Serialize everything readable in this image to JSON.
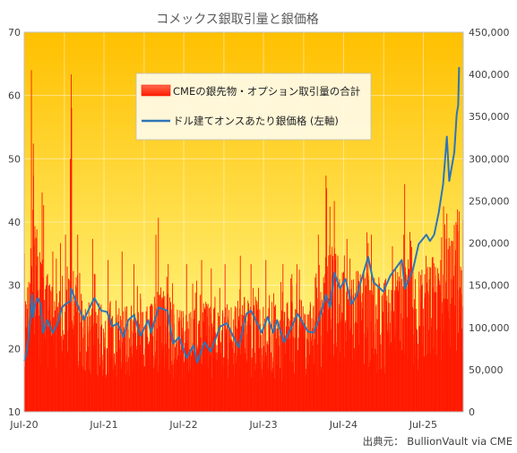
{
  "chart_data": {
    "type": "bar+line",
    "title": "コメックス銀取引量と銀価格",
    "source": "出典元： BullionVault via CME",
    "legend": {
      "placement": "top-center",
      "entries": [
        "CMEの銀先物・オプション取引量の合計",
        "ドル建てオンスあたり銀価格 (左軸)"
      ]
    },
    "x_axis": {
      "start": "2020-07",
      "end": "2025-12",
      "tick_labels": [
        "Jul-20",
        "Jul-21",
        "Jul-22",
        "Jul-23",
        "Jul-24",
        "Jul-25"
      ]
    },
    "left_axis": {
      "ylim": [
        10,
        70
      ],
      "ticks": [
        10,
        20,
        30,
        40,
        50,
        60,
        70
      ]
    },
    "right_axis": {
      "ylim": [
        0,
        450000
      ],
      "tick_labels": [
        "0",
        "50,000",
        "100,000",
        "150,000",
        "200,000",
        "250,000",
        "300,000",
        "350,000",
        "400,000",
        "450,000"
      ]
    },
    "grid": true,
    "colors": {
      "bars": "#ff1a00",
      "line": "#2e75b6",
      "bg_top": "#ffc000",
      "bg_bottom": "#ffff99"
    },
    "series": [
      {
        "name": "CMEの銀先物・オプション取引量の合計",
        "axis": "right",
        "kind": "bar",
        "baseline_points": [
          [
            "2020-07",
            95000
          ],
          [
            "2020-08",
            150000
          ],
          [
            "2020-09",
            120000
          ],
          [
            "2020-10",
            100000
          ],
          [
            "2020-11",
            95000
          ],
          [
            "2020-12",
            90000
          ],
          [
            "2021-01",
            95000
          ],
          [
            "2021-02",
            120000
          ],
          [
            "2021-03",
            90000
          ],
          [
            "2021-04",
            80000
          ],
          [
            "2021-05",
            88000
          ],
          [
            "2021-06",
            82000
          ],
          [
            "2021-07",
            80000
          ],
          [
            "2021-08",
            88000
          ],
          [
            "2021-09",
            85000
          ],
          [
            "2021-10",
            80000
          ],
          [
            "2021-11",
            85000
          ],
          [
            "2021-12",
            80000
          ],
          [
            "2022-01",
            78000
          ],
          [
            "2022-02",
            85000
          ],
          [
            "2022-03",
            95000
          ],
          [
            "2022-04",
            85000
          ],
          [
            "2022-05",
            80000
          ],
          [
            "2022-06",
            78000
          ],
          [
            "2022-07",
            75000
          ],
          [
            "2022-08",
            78000
          ],
          [
            "2022-09",
            80000
          ],
          [
            "2022-10",
            82000
          ],
          [
            "2022-11",
            80000
          ],
          [
            "2022-12",
            78000
          ],
          [
            "2023-01",
            80000
          ],
          [
            "2023-02",
            78000
          ],
          [
            "2023-03",
            85000
          ],
          [
            "2023-04",
            88000
          ],
          [
            "2023-05",
            85000
          ],
          [
            "2023-06",
            80000
          ],
          [
            "2023-07",
            80000
          ],
          [
            "2023-08",
            82000
          ],
          [
            "2023-09",
            80000
          ],
          [
            "2023-10",
            82000
          ],
          [
            "2023-11",
            85000
          ],
          [
            "2023-12",
            85000
          ],
          [
            "2024-01",
            82000
          ],
          [
            "2024-02",
            85000
          ],
          [
            "2024-03",
            105000
          ],
          [
            "2024-04",
            120000
          ],
          [
            "2024-05",
            130000
          ],
          [
            "2024-06",
            110000
          ],
          [
            "2024-07",
            105000
          ],
          [
            "2024-08",
            100000
          ],
          [
            "2024-09",
            105000
          ],
          [
            "2024-10",
            110000
          ],
          [
            "2024-11",
            100000
          ],
          [
            "2024-12",
            95000
          ],
          [
            "2025-01",
            100000
          ],
          [
            "2025-02",
            110000
          ],
          [
            "2025-03",
            105000
          ],
          [
            "2025-04",
            120000
          ],
          [
            "2025-05",
            100000
          ],
          [
            "2025-06",
            105000
          ],
          [
            "2025-07",
            110000
          ],
          [
            "2025-08",
            115000
          ],
          [
            "2025-09",
            125000
          ],
          [
            "2025-10",
            150000
          ],
          [
            "2025-11",
            140000
          ],
          [
            "2025-12",
            145000
          ]
        ],
        "spikes": [
          [
            "2020-08-03",
            405000
          ],
          [
            "2020-08-12",
            318000
          ],
          [
            "2020-09-21",
            260000
          ],
          [
            "2020-09-28",
            245000
          ],
          [
            "2020-11-09",
            190000
          ],
          [
            "2020-12-14",
            200000
          ],
          [
            "2021-01-06",
            210000
          ],
          [
            "2021-01-28",
            300000
          ],
          [
            "2021-02-01",
            400000
          ],
          [
            "2021-02-03",
            360000
          ],
          [
            "2021-03-03",
            210000
          ],
          [
            "2021-05-10",
            205000
          ],
          [
            "2021-07-20",
            180000
          ],
          [
            "2021-09-22",
            190000
          ],
          [
            "2021-11-15",
            175000
          ],
          [
            "2022-02-24",
            210000
          ],
          [
            "2022-03-07",
            230000
          ],
          [
            "2022-04-21",
            175000
          ],
          [
            "2022-07-14",
            175000
          ],
          [
            "2022-09-21",
            180000
          ],
          [
            "2022-11-04",
            170000
          ],
          [
            "2023-01-06",
            175000
          ],
          [
            "2023-03-17",
            185000
          ],
          [
            "2023-05-05",
            175000
          ],
          [
            "2023-07-12",
            180000
          ],
          [
            "2023-09-28",
            175000
          ],
          [
            "2023-12-01",
            175000
          ],
          [
            "2024-03-08",
            210000
          ],
          [
            "2024-04-12",
            280000
          ],
          [
            "2024-04-15",
            265000
          ],
          [
            "2024-05-20",
            250000
          ],
          [
            "2024-07-17",
            205000
          ],
          [
            "2024-10-22",
            200000
          ],
          [
            "2024-11-06",
            210000
          ],
          [
            "2025-04-03",
            210000
          ],
          [
            "2025-04-07",
            270000
          ],
          [
            "2025-07-14",
            185000
          ],
          [
            "2025-09-19",
            180000
          ],
          [
            "2025-10-09",
            205000
          ],
          [
            "2025-10-17",
            235000
          ],
          [
            "2025-11-28",
            225000
          ],
          [
            "2025-12-05",
            240000
          ]
        ]
      },
      {
        "name": "ドル建てオンスあたり銀価格 (左軸)",
        "axis": "left",
        "kind": "line",
        "points": [
          [
            "2020-07-01",
            18.0
          ],
          [
            "2020-07-10",
            19.0
          ],
          [
            "2020-07-20",
            21.5
          ],
          [
            "2020-07-28",
            24.5
          ],
          [
            "2020-08-06",
            28.5
          ],
          [
            "2020-08-11",
            25.0
          ],
          [
            "2020-08-20",
            27.0
          ],
          [
            "2020-09-01",
            28.0
          ],
          [
            "2020-09-15",
            27.0
          ],
          [
            "2020-09-25",
            22.5
          ],
          [
            "2020-10-15",
            24.5
          ],
          [
            "2020-11-09",
            22.5
          ],
          [
            "2020-12-01",
            24.0
          ],
          [
            "2020-12-21",
            26.5
          ],
          [
            "2021-01-05",
            27.0
          ],
          [
            "2021-01-29",
            27.5
          ],
          [
            "2021-02-01",
            29.5
          ],
          [
            "2021-02-23",
            27.5
          ],
          [
            "2021-03-31",
            24.5
          ],
          [
            "2021-04-20",
            26.0
          ],
          [
            "2021-05-18",
            28.0
          ],
          [
            "2021-06-18",
            26.0
          ],
          [
            "2021-07-15",
            25.8
          ],
          [
            "2021-08-09",
            23.5
          ],
          [
            "2021-09-01",
            24.0
          ],
          [
            "2021-09-29",
            21.8
          ],
          [
            "2021-10-20",
            24.5
          ],
          [
            "2021-11-15",
            25.3
          ],
          [
            "2021-12-15",
            22.0
          ],
          [
            "2022-01-20",
            24.5
          ],
          [
            "2022-02-01",
            22.5
          ],
          [
            "2022-03-08",
            26.5
          ],
          [
            "2022-04-18",
            26.0
          ],
          [
            "2022-05-13",
            20.8
          ],
          [
            "2022-06-10",
            21.8
          ],
          [
            "2022-07-14",
            18.5
          ],
          [
            "2022-08-15",
            20.5
          ],
          [
            "2022-09-01",
            17.8
          ],
          [
            "2022-10-04",
            21.0
          ],
          [
            "2022-11-01",
            19.5
          ],
          [
            "2022-12-15",
            23.5
          ],
          [
            "2023-01-15",
            24.0
          ],
          [
            "2023-02-28",
            20.8
          ],
          [
            "2023-03-10",
            20.2
          ],
          [
            "2023-04-14",
            25.5
          ],
          [
            "2023-05-05",
            26.0
          ],
          [
            "2023-06-23",
            22.5
          ],
          [
            "2023-07-20",
            25.0
          ],
          [
            "2023-08-15",
            22.5
          ],
          [
            "2023-09-01",
            24.5
          ],
          [
            "2023-10-03",
            21.0
          ],
          [
            "2023-11-01",
            23.0
          ],
          [
            "2023-12-04",
            25.5
          ],
          [
            "2024-01-20",
            22.7
          ],
          [
            "2024-02-15",
            22.5
          ],
          [
            "2024-03-15",
            25.0
          ],
          [
            "2024-04-12",
            28.5
          ],
          [
            "2024-05-01",
            26.5
          ],
          [
            "2024-05-20",
            32.0
          ],
          [
            "2024-06-15",
            29.5
          ],
          [
            "2024-07-10",
            31.0
          ],
          [
            "2024-08-07",
            27.0
          ],
          [
            "2024-09-01",
            28.5
          ],
          [
            "2024-10-22",
            34.5
          ],
          [
            "2024-11-15",
            30.5
          ],
          [
            "2024-12-31",
            29.0
          ],
          [
            "2025-01-31",
            31.5
          ],
          [
            "2025-03-25",
            34.0
          ],
          [
            "2025-04-08",
            29.5
          ],
          [
            "2025-05-15",
            32.5
          ],
          [
            "2025-06-10",
            36.5
          ],
          [
            "2025-07-15",
            38.0
          ],
          [
            "2025-08-01",
            37.0
          ],
          [
            "2025-08-20",
            38.0
          ],
          [
            "2025-09-10",
            41.5
          ],
          [
            "2025-09-30",
            46.0
          ],
          [
            "2025-10-17",
            53.5
          ],
          [
            "2025-10-28",
            46.5
          ],
          [
            "2025-11-20",
            51.0
          ],
          [
            "2025-12-01",
            57.0
          ],
          [
            "2025-12-08",
            58.5
          ],
          [
            "2025-12-12",
            64.5
          ]
        ]
      }
    ]
  }
}
